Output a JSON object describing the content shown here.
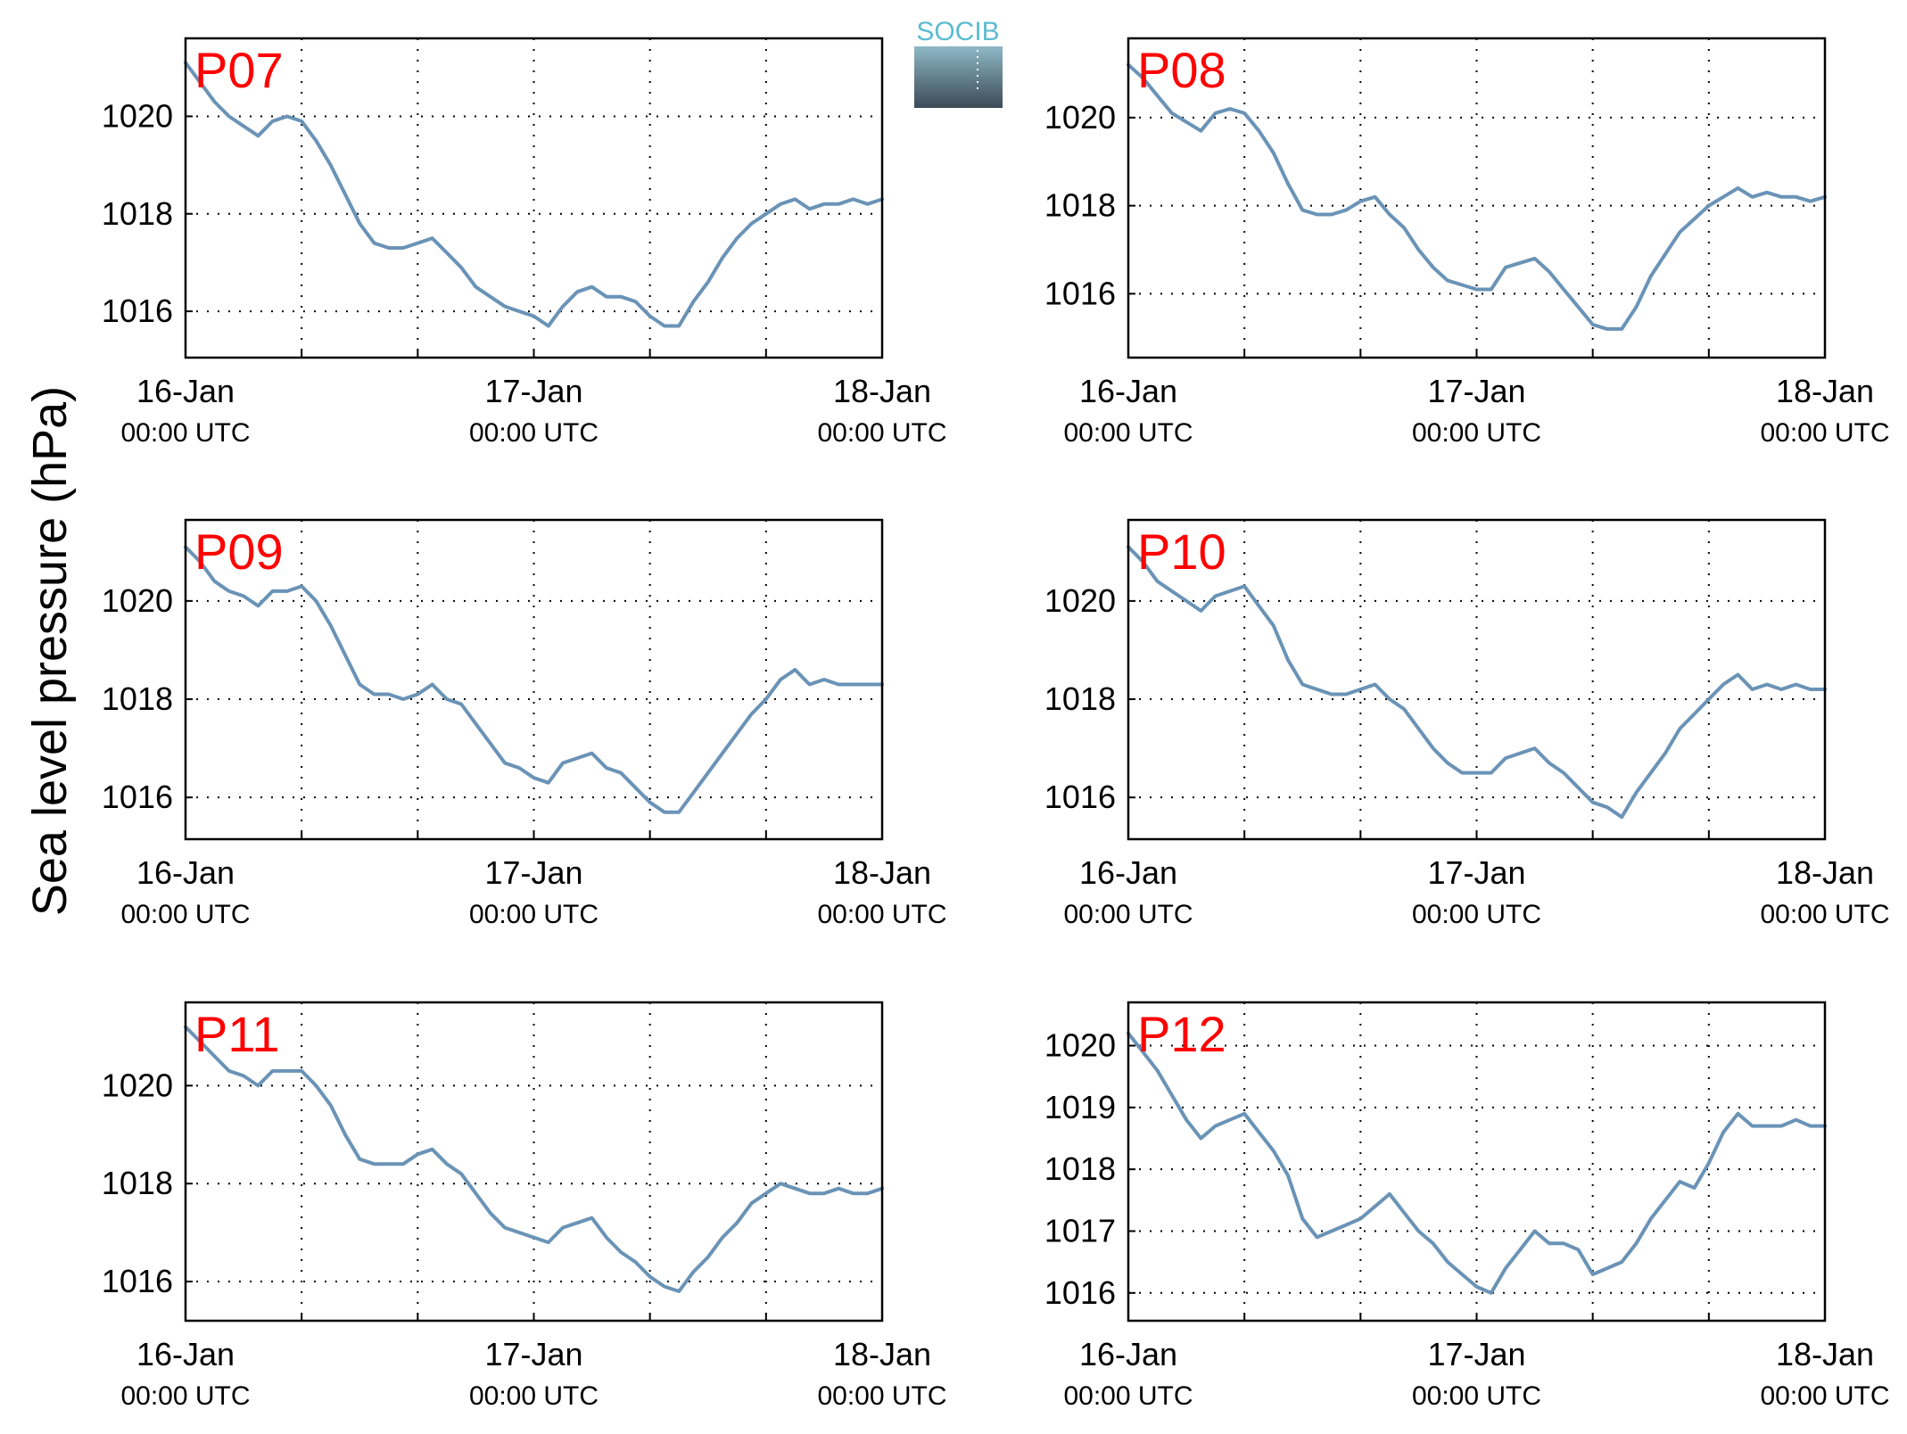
{
  "figure": {
    "ylabel": "Sea level pressure (hPa)",
    "logo_text": "SOCIB",
    "line_color": "#6a93b6",
    "label_color": "#ff0000"
  },
  "chart_data": [
    {
      "type": "line",
      "title": "P07",
      "xticks": [
        {
          "top": "16-Jan",
          "bottom": "00:00 UTC"
        },
        {
          "top": "17-Jan",
          "bottom": "00:00 UTC"
        },
        {
          "top": "18-Jan",
          "bottom": "00:00 UTC"
        }
      ],
      "xlim": [
        0,
        48
      ],
      "ylim": [
        1015.05,
        1021.6
      ],
      "yticks": [
        1016,
        1018,
        1020
      ],
      "x": [
        0,
        1,
        2,
        3,
        4,
        5,
        6,
        7,
        8,
        9,
        10,
        11,
        12,
        13,
        14,
        15,
        16,
        17,
        18,
        19,
        20,
        21,
        22,
        23,
        24,
        25,
        26,
        27,
        28,
        29,
        30,
        31,
        32,
        33,
        34,
        35,
        36,
        37,
        38,
        39,
        40,
        41,
        42,
        43,
        44,
        45,
        46,
        47,
        48
      ],
      "values": [
        1021.1,
        1020.7,
        1020.3,
        1020.0,
        1019.8,
        1019.6,
        1019.9,
        1020.0,
        1019.9,
        1019.5,
        1019.0,
        1018.4,
        1017.8,
        1017.4,
        1017.3,
        1017.3,
        1017.4,
        1017.5,
        1017.2,
        1016.9,
        1016.5,
        1016.3,
        1016.1,
        1016.0,
        1015.9,
        1015.7,
        1016.1,
        1016.4,
        1016.5,
        1016.3,
        1016.3,
        1016.2,
        1015.9,
        1015.7,
        1015.7,
        1016.2,
        1016.6,
        1017.1,
        1017.5,
        1017.8,
        1018.0,
        1018.2,
        1018.3,
        1018.1,
        1018.2,
        1018.2,
        1018.3,
        1018.2,
        1018.3
      ]
    },
    {
      "type": "line",
      "title": "P08",
      "xticks": [
        {
          "top": "16-Jan",
          "bottom": "00:00 UTC"
        },
        {
          "top": "17-Jan",
          "bottom": "00:00 UTC"
        },
        {
          "top": "18-Jan",
          "bottom": "00:00 UTC"
        }
      ],
      "xlim": [
        0,
        48
      ],
      "ylim": [
        1014.55,
        1021.8
      ],
      "yticks": [
        1016,
        1018,
        1020
      ],
      "x": [
        0,
        1,
        2,
        3,
        4,
        5,
        6,
        7,
        8,
        9,
        10,
        11,
        12,
        13,
        14,
        15,
        16,
        17,
        18,
        19,
        20,
        21,
        22,
        23,
        24,
        25,
        26,
        27,
        28,
        29,
        30,
        31,
        32,
        33,
        34,
        35,
        36,
        37,
        38,
        39,
        40,
        41,
        42,
        43,
        44,
        45,
        46,
        47,
        48
      ],
      "values": [
        1021.2,
        1020.9,
        1020.5,
        1020.1,
        1019.9,
        1019.7,
        1020.1,
        1020.2,
        1020.1,
        1019.7,
        1019.2,
        1018.5,
        1017.9,
        1017.8,
        1017.8,
        1017.9,
        1018.1,
        1018.2,
        1017.8,
        1017.5,
        1017.0,
        1016.6,
        1016.3,
        1016.2,
        1016.1,
        1016.1,
        1016.6,
        1016.7,
        1016.8,
        1016.5,
        1016.1,
        1015.7,
        1015.3,
        1015.2,
        1015.2,
        1015.7,
        1016.4,
        1016.9,
        1017.4,
        1017.7,
        1018.0,
        1018.2,
        1018.4,
        1018.2,
        1018.3,
        1018.2,
        1018.2,
        1018.1,
        1018.2
      ]
    },
    {
      "type": "line",
      "title": "P09",
      "xticks": [
        {
          "top": "16-Jan",
          "bottom": "00:00 UTC"
        },
        {
          "top": "17-Jan",
          "bottom": "00:00 UTC"
        },
        {
          "top": "18-Jan",
          "bottom": "00:00 UTC"
        }
      ],
      "xlim": [
        0,
        48
      ],
      "ylim": [
        1015.15,
        1021.65
      ],
      "yticks": [
        1016,
        1018,
        1020
      ],
      "x": [
        0,
        1,
        2,
        3,
        4,
        5,
        6,
        7,
        8,
        9,
        10,
        11,
        12,
        13,
        14,
        15,
        16,
        17,
        18,
        19,
        20,
        21,
        22,
        23,
        24,
        25,
        26,
        27,
        28,
        29,
        30,
        31,
        32,
        33,
        34,
        35,
        36,
        37,
        38,
        39,
        40,
        41,
        42,
        43,
        44,
        45,
        46,
        47,
        48
      ],
      "values": [
        1021.1,
        1020.8,
        1020.4,
        1020.2,
        1020.1,
        1019.9,
        1020.2,
        1020.2,
        1020.3,
        1020.0,
        1019.5,
        1018.9,
        1018.3,
        1018.1,
        1018.1,
        1018.0,
        1018.1,
        1018.3,
        1018.0,
        1017.9,
        1017.5,
        1017.1,
        1016.7,
        1016.6,
        1016.4,
        1016.3,
        1016.7,
        1016.8,
        1016.9,
        1016.6,
        1016.5,
        1016.2,
        1015.9,
        1015.7,
        1015.7,
        1016.1,
        1016.5,
        1016.9,
        1017.3,
        1017.7,
        1018.0,
        1018.4,
        1018.6,
        1018.3,
        1018.4,
        1018.3,
        1018.3,
        1018.3,
        1018.3
      ]
    },
    {
      "type": "line",
      "title": "P10",
      "xticks": [
        {
          "top": "16-Jan",
          "bottom": "00:00 UTC"
        },
        {
          "top": "17-Jan",
          "bottom": "00:00 UTC"
        },
        {
          "top": "18-Jan",
          "bottom": "00:00 UTC"
        }
      ],
      "xlim": [
        0,
        48
      ],
      "ylim": [
        1015.15,
        1021.65
      ],
      "yticks": [
        1016,
        1018,
        1020
      ],
      "x": [
        0,
        1,
        2,
        3,
        4,
        5,
        6,
        7,
        8,
        9,
        10,
        11,
        12,
        13,
        14,
        15,
        16,
        17,
        18,
        19,
        20,
        21,
        22,
        23,
        24,
        25,
        26,
        27,
        28,
        29,
        30,
        31,
        32,
        33,
        34,
        35,
        36,
        37,
        38,
        39,
        40,
        41,
        42,
        43,
        44,
        45,
        46,
        47,
        48
      ],
      "values": [
        1021.1,
        1020.8,
        1020.4,
        1020.2,
        1020.0,
        1019.8,
        1020.1,
        1020.2,
        1020.3,
        1019.9,
        1019.5,
        1018.8,
        1018.3,
        1018.2,
        1018.1,
        1018.1,
        1018.2,
        1018.3,
        1018.0,
        1017.8,
        1017.4,
        1017.0,
        1016.7,
        1016.5,
        1016.5,
        1016.5,
        1016.8,
        1016.9,
        1017.0,
        1016.7,
        1016.5,
        1016.2,
        1015.9,
        1015.8,
        1015.6,
        1016.1,
        1016.5,
        1016.9,
        1017.4,
        1017.7,
        1018.0,
        1018.3,
        1018.5,
        1018.2,
        1018.3,
        1018.2,
        1018.3,
        1018.2,
        1018.2
      ]
    },
    {
      "type": "line",
      "title": "P11",
      "xticks": [
        {
          "top": "16-Jan",
          "bottom": "00:00 UTC"
        },
        {
          "top": "17-Jan",
          "bottom": "00:00 UTC"
        },
        {
          "top": "18-Jan",
          "bottom": "00:00 UTC"
        }
      ],
      "xlim": [
        0,
        48
      ],
      "ylim": [
        1015.2,
        1021.7
      ],
      "yticks": [
        1016,
        1018,
        1020
      ],
      "x": [
        0,
        1,
        2,
        3,
        4,
        5,
        6,
        7,
        8,
        9,
        10,
        11,
        12,
        13,
        14,
        15,
        16,
        17,
        18,
        19,
        20,
        21,
        22,
        23,
        24,
        25,
        26,
        27,
        28,
        29,
        30,
        31,
        32,
        33,
        34,
        35,
        36,
        37,
        38,
        39,
        40,
        41,
        42,
        43,
        44,
        45,
        46,
        47,
        48
      ],
      "values": [
        1021.2,
        1020.9,
        1020.6,
        1020.3,
        1020.2,
        1020.0,
        1020.3,
        1020.3,
        1020.3,
        1020.0,
        1019.6,
        1019.0,
        1018.5,
        1018.4,
        1018.4,
        1018.4,
        1018.6,
        1018.7,
        1018.4,
        1018.2,
        1017.8,
        1017.4,
        1017.1,
        1017.0,
        1016.9,
        1016.8,
        1017.1,
        1017.2,
        1017.3,
        1016.9,
        1016.6,
        1016.4,
        1016.1,
        1015.9,
        1015.8,
        1016.2,
        1016.5,
        1016.9,
        1017.2,
        1017.6,
        1017.8,
        1018.0,
        1017.9,
        1017.8,
        1017.8,
        1017.9,
        1017.8,
        1017.8,
        1017.9
      ]
    },
    {
      "type": "line",
      "title": "P12",
      "xticks": [
        {
          "top": "16-Jan",
          "bottom": "00:00 UTC"
        },
        {
          "top": "17-Jan",
          "bottom": "00:00 UTC"
        },
        {
          "top": "18-Jan",
          "bottom": "00:00 UTC"
        }
      ],
      "xlim": [
        0,
        48
      ],
      "ylim": [
        1015.55,
        1020.7
      ],
      "yticks": [
        1016,
        1017,
        1018,
        1019,
        1020
      ],
      "x": [
        0,
        1,
        2,
        3,
        4,
        5,
        6,
        7,
        8,
        9,
        10,
        11,
        12,
        13,
        14,
        15,
        16,
        17,
        18,
        19,
        20,
        21,
        22,
        23,
        24,
        25,
        26,
        27,
        28,
        29,
        30,
        31,
        32,
        33,
        34,
        35,
        36,
        37,
        38,
        39,
        40,
        41,
        42,
        43,
        44,
        45,
        46,
        47,
        48
      ],
      "values": [
        1020.2,
        1019.9,
        1019.6,
        1019.2,
        1018.8,
        1018.5,
        1018.7,
        1018.8,
        1018.9,
        1018.6,
        1018.3,
        1017.9,
        1017.2,
        1016.9,
        1017.0,
        1017.1,
        1017.2,
        1017.4,
        1017.6,
        1017.3,
        1017.0,
        1016.8,
        1016.5,
        1016.3,
        1016.1,
        1016.0,
        1016.4,
        1016.7,
        1017.0,
        1016.8,
        1016.8,
        1016.7,
        1016.3,
        1016.4,
        1016.5,
        1016.8,
        1017.2,
        1017.5,
        1017.8,
        1017.7,
        1018.1,
        1018.6,
        1018.9,
        1018.7,
        1018.7,
        1018.7,
        1018.8,
        1018.7,
        1018.7
      ]
    }
  ]
}
